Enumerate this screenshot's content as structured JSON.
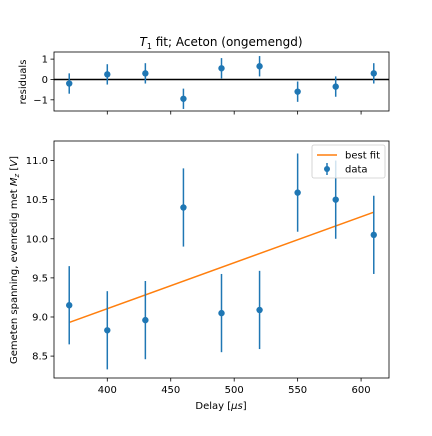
{
  "chart_data": [
    {
      "type": "scatter",
      "panel": "residuals",
      "title": "T1 fit; Aceton (ongemengd)",
      "title_parts": {
        "symbol": "T",
        "subscript": "1",
        "rest": " fit; Aceton (ongemengd)"
      },
      "xlabel": "",
      "ylabel": "residuals",
      "xlim": [
        358,
        622
      ],
      "ylim": [
        -1.55,
        1.35
      ],
      "yticks": [
        -1,
        0,
        1
      ],
      "ytick_labels": [
        "−1",
        "0",
        "1"
      ],
      "grid": false,
      "zero_line": true,
      "series": [
        {
          "color": "#1f77b4",
          "marker": "circle-with-errorbars",
          "points": [
            {
              "x": 370,
              "y": -0.2,
              "yerr": 0.5
            },
            {
              "x": 400,
              "y": 0.25,
              "yerr": 0.5
            },
            {
              "x": 430,
              "y": 0.3,
              "yerr": 0.5
            },
            {
              "x": 460,
              "y": -0.95,
              "yerr": 0.5
            },
            {
              "x": 490,
              "y": 0.55,
              "yerr": 0.5
            },
            {
              "x": 520,
              "y": 0.65,
              "yerr": 0.5
            },
            {
              "x": 550,
              "y": -0.6,
              "yerr": 0.5
            },
            {
              "x": 580,
              "y": -0.35,
              "yerr": 0.5
            },
            {
              "x": 610,
              "y": 0.3,
              "yerr": 0.5
            }
          ]
        }
      ]
    },
    {
      "type": "scatter",
      "panel": "main",
      "title": "",
      "xlabel": "Delay [μs]",
      "xlabel_parts": {
        "prefix": "Delay [",
        "unit": "μs",
        "suffix": "]"
      },
      "ylabel": "Gemeten spanning, evenredig met Mz [V]",
      "ylabel_parts": {
        "prefix": "Gemeten spanning, evenredig met ",
        "symbol": "M",
        "subscript": "z",
        "mid": " [",
        "unit": "V",
        "suffix": "]"
      },
      "xlim": [
        358,
        622
      ],
      "ylim": [
        8.22,
        11.25
      ],
      "xticks": [
        400,
        450,
        500,
        550,
        600
      ],
      "xtick_labels": [
        "400",
        "450",
        "500",
        "550",
        "600"
      ],
      "yticks": [
        8.5,
        9.0,
        9.5,
        10.0,
        10.5,
        11.0
      ],
      "ytick_labels": [
        "8.5",
        "9.0",
        "9.5",
        "10.0",
        "10.5",
        "11.0"
      ],
      "grid": false,
      "legend_position": "top-right",
      "legend": [
        {
          "label": "best fit",
          "kind": "line",
          "color": "#ff7f0e"
        },
        {
          "label": "data",
          "kind": "errorbar",
          "color": "#1f77b4"
        }
      ],
      "series": [
        {
          "name": "data",
          "color": "#1f77b4",
          "marker": "circle-with-errorbars",
          "points": [
            {
              "x": 370,
              "y": 9.15,
              "yerr": 0.5
            },
            {
              "x": 400,
              "y": 8.83,
              "yerr": 0.5
            },
            {
              "x": 430,
              "y": 8.96,
              "yerr": 0.5
            },
            {
              "x": 460,
              "y": 10.4,
              "yerr": 0.5
            },
            {
              "x": 490,
              "y": 9.05,
              "yerr": 0.5
            },
            {
              "x": 520,
              "y": 9.09,
              "yerr": 0.5
            },
            {
              "x": 550,
              "y": 10.59,
              "yerr": 0.5
            },
            {
              "x": 580,
              "y": 10.5,
              "yerr": 0.5
            },
            {
              "x": 610,
              "y": 10.05,
              "yerr": 0.5
            }
          ]
        },
        {
          "name": "best fit",
          "color": "#ff7f0e",
          "kind": "line",
          "points": [
            {
              "x": 370,
              "y": 8.93
            },
            {
              "x": 610,
              "y": 10.34
            }
          ]
        }
      ]
    }
  ]
}
